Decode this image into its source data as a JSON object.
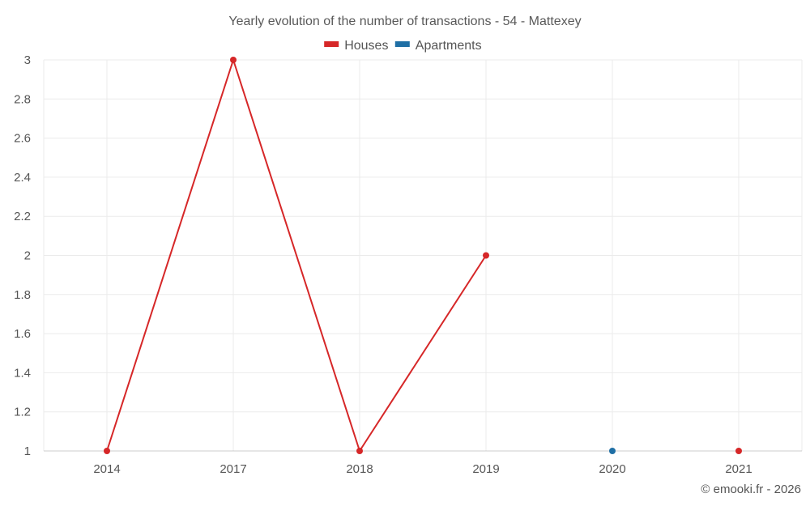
{
  "chart_data": {
    "type": "line",
    "title": "Yearly evolution of the number of transactions - 54 - Mattexey",
    "categories": [
      "2014",
      "2017",
      "2018",
      "2019",
      "2020",
      "2021"
    ],
    "series": [
      {
        "name": "Houses",
        "color": "#d62728",
        "values": [
          1,
          3,
          1,
          2,
          null,
          1
        ]
      },
      {
        "name": "Apartments",
        "color": "#1f6fa5",
        "values": [
          null,
          null,
          null,
          null,
          1,
          null
        ]
      }
    ],
    "ylim": [
      1,
      3
    ],
    "yticks": [
      "1",
      "1.2",
      "1.4",
      "1.6",
      "1.8",
      "2",
      "2.2",
      "2.4",
      "2.6",
      "2.8",
      "3"
    ],
    "legend_position": "top-center",
    "grid": true,
    "xlabel": "",
    "ylabel": ""
  },
  "credit": "© emooki.fr - 2026"
}
